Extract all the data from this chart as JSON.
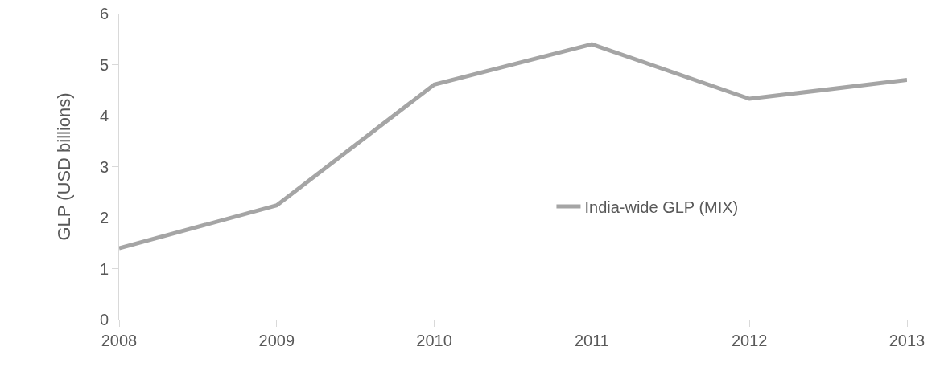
{
  "chart_data": {
    "type": "line",
    "ylabel": "GLP (USD billions)",
    "x": [
      2008,
      2009,
      2010,
      2011,
      2012,
      2013
    ],
    "xlim": [
      2008,
      2013
    ],
    "xticks": [
      2008,
      2009,
      2010,
      2011,
      2012,
      2013
    ],
    "ylim": [
      0,
      6
    ],
    "yticks": [
      0,
      1,
      2,
      3,
      4,
      5,
      6
    ],
    "series": [
      {
        "name": "India-wide GLP (MIX)",
        "color": "#a5a5a5",
        "values": [
          1.4,
          2.24,
          4.61,
          5.4,
          4.33,
          4.7
        ]
      }
    ],
    "grid": false,
    "legend": "right",
    "marker": "none",
    "line_style": "solid"
  }
}
